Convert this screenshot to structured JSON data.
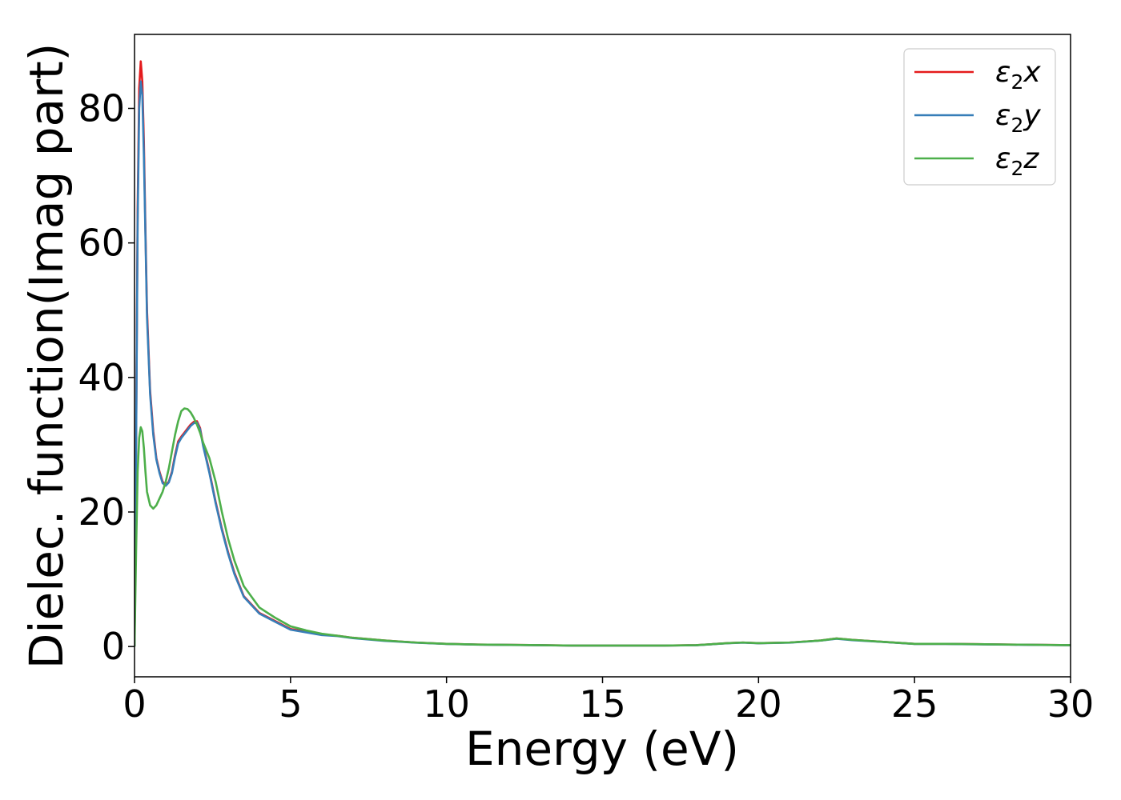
{
  "chart_data": {
    "type": "line",
    "xlabel": "Energy (eV)",
    "ylabel": "Dielec. function(Imag part)",
    "xlim": [
      0,
      30
    ],
    "ylim": [
      -4.5,
      91
    ],
    "xticks": [
      0,
      5,
      10,
      15,
      20,
      25,
      30
    ],
    "yticks": [
      0,
      20,
      40,
      60,
      80
    ],
    "grid": false,
    "legend_position": "top-right",
    "series": [
      {
        "name": "ε₂x",
        "legend_base": "ε",
        "legend_sub": "2",
        "legend_suffix": "x",
        "color": "#e41a1c",
        "x": [
          0,
          0.05,
          0.1,
          0.15,
          0.2,
          0.25,
          0.3,
          0.35,
          0.4,
          0.5,
          0.6,
          0.7,
          0.8,
          0.9,
          1.0,
          1.1,
          1.2,
          1.3,
          1.4,
          1.5,
          1.6,
          1.7,
          1.8,
          1.9,
          2.0,
          2.1,
          2.2,
          2.4,
          2.6,
          2.8,
          3.0,
          3.2,
          3.5,
          4.0,
          4.5,
          5.0,
          5.5,
          6.0,
          6.5,
          7.0,
          8.0,
          9.0,
          10.0,
          11.0,
          12.0,
          13.0,
          14.0,
          15.0,
          16.0,
          17.0,
          18.0,
          19.0,
          19.5,
          20.0,
          21.0,
          22.0,
          22.5,
          23.0,
          24.0,
          25.0,
          26.0,
          27.0,
          28.0,
          29.0,
          30.0
        ],
        "values": [
          0,
          30,
          65,
          83,
          87,
          84,
          75,
          62,
          50,
          38,
          32,
          28,
          26,
          24.5,
          24,
          24.5,
          26,
          28.5,
          30.5,
          31.2,
          31.8,
          32.4,
          33,
          33.4,
          33.5,
          32.5,
          30,
          26,
          21.5,
          17.5,
          14,
          11,
          7.5,
          5,
          3.8,
          2.6,
          2.2,
          1.8,
          1.6,
          1.3,
          0.9,
          0.6,
          0.4,
          0.3,
          0.25,
          0.2,
          0.15,
          0.15,
          0.15,
          0.15,
          0.2,
          0.5,
          0.6,
          0.5,
          0.6,
          0.9,
          1.2,
          1.0,
          0.7,
          0.4,
          0.4,
          0.35,
          0.3,
          0.25,
          0.2
        ]
      },
      {
        "name": "ε₂y",
        "legend_base": "ε",
        "legend_sub": "2",
        "legend_suffix": "y",
        "color": "#377eb8",
        "x": [
          0,
          0.05,
          0.1,
          0.15,
          0.2,
          0.25,
          0.3,
          0.35,
          0.4,
          0.5,
          0.6,
          0.7,
          0.8,
          0.9,
          1.0,
          1.1,
          1.2,
          1.3,
          1.4,
          1.5,
          1.6,
          1.7,
          1.8,
          1.9,
          2.0,
          2.1,
          2.2,
          2.4,
          2.6,
          2.8,
          3.0,
          3.2,
          3.5,
          4.0,
          4.5,
          5.0,
          5.5,
          6.0,
          6.5,
          7.0,
          8.0,
          9.0,
          10.0,
          11.0,
          12.0,
          13.0,
          14.0,
          15.0,
          16.0,
          17.0,
          18.0,
          19.0,
          19.5,
          20.0,
          21.0,
          22.0,
          22.5,
          23.0,
          24.0,
          25.0,
          26.0,
          27.0,
          28.0,
          29.0,
          30.0
        ],
        "values": [
          0,
          29,
          63,
          80,
          84,
          82,
          73,
          61,
          49,
          37.5,
          31.5,
          27.8,
          25.8,
          24.3,
          23.9,
          24.4,
          25.8,
          28.2,
          30.2,
          31,
          31.6,
          32.2,
          32.8,
          33.2,
          33.3,
          32.3,
          29.8,
          25.8,
          21.3,
          17.3,
          13.8,
          10.8,
          7.4,
          4.9,
          3.7,
          2.5,
          2.1,
          1.7,
          1.55,
          1.25,
          0.85,
          0.58,
          0.38,
          0.28,
          0.24,
          0.19,
          0.14,
          0.14,
          0.14,
          0.14,
          0.19,
          0.48,
          0.58,
          0.48,
          0.58,
          0.88,
          1.15,
          0.95,
          0.68,
          0.38,
          0.38,
          0.33,
          0.28,
          0.23,
          0.19
        ]
      },
      {
        "name": "ε₂z",
        "legend_base": "ε",
        "legend_sub": "2",
        "legend_suffix": "z",
        "color": "#4daf4a",
        "x": [
          0,
          0.05,
          0.1,
          0.15,
          0.2,
          0.25,
          0.3,
          0.35,
          0.4,
          0.5,
          0.6,
          0.7,
          0.8,
          0.9,
          1.0,
          1.1,
          1.2,
          1.3,
          1.4,
          1.5,
          1.6,
          1.7,
          1.8,
          1.9,
          2.0,
          2.1,
          2.2,
          2.4,
          2.6,
          2.8,
          3.0,
          3.2,
          3.5,
          4.0,
          4.5,
          5.0,
          5.5,
          6.0,
          6.5,
          7.0,
          8.0,
          9.0,
          10.0,
          11.0,
          12.0,
          13.0,
          14.0,
          15.0,
          16.0,
          17.0,
          18.0,
          19.0,
          19.5,
          20.0,
          21.0,
          22.0,
          22.5,
          23.0,
          24.0,
          25.0,
          26.0,
          27.0,
          28.0,
          29.0,
          30.0
        ],
        "values": [
          0,
          14,
          26,
          31,
          32.6,
          32,
          29.5,
          26,
          23,
          21,
          20.5,
          21,
          22,
          23,
          24.5,
          26.5,
          29,
          31.5,
          33.5,
          35,
          35.4,
          35.3,
          34.8,
          34,
          33,
          31.8,
          30.3,
          28,
          24.5,
          20,
          16,
          12.8,
          9,
          5.8,
          4.3,
          3.0,
          2.4,
          1.9,
          1.6,
          1.3,
          0.9,
          0.6,
          0.4,
          0.3,
          0.25,
          0.2,
          0.15,
          0.15,
          0.15,
          0.15,
          0.2,
          0.5,
          0.6,
          0.5,
          0.6,
          0.9,
          1.2,
          1.0,
          0.7,
          0.4,
          0.4,
          0.35,
          0.3,
          0.25,
          0.2
        ]
      }
    ]
  }
}
